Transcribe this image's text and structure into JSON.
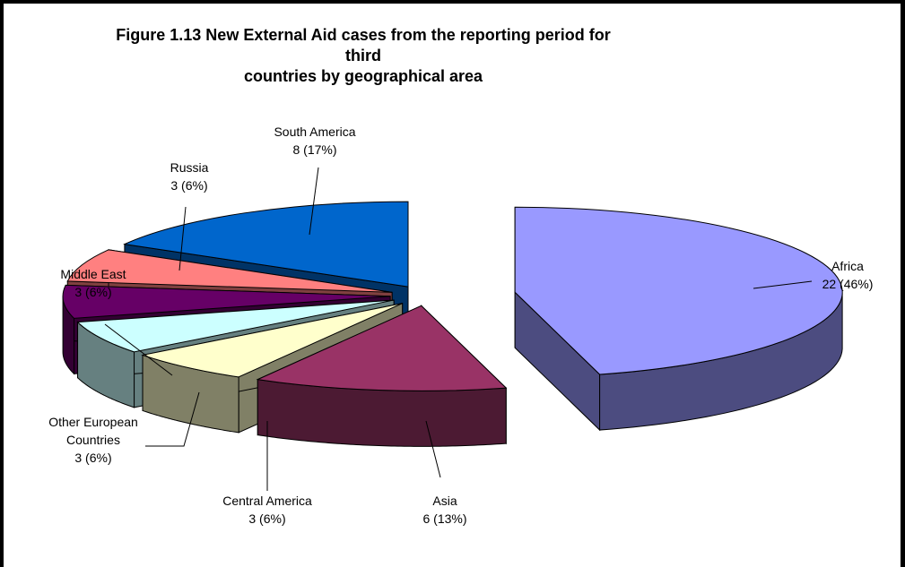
{
  "chart_data": {
    "type": "pie",
    "title_lines": [
      "Figure 1.13 New External Aid cases from the reporting period for third",
      "countries by geographical area"
    ],
    "slices": [
      {
        "name": "Africa",
        "value": 22,
        "label": "22 (46%)",
        "top_color": "#9999FF",
        "side_color": "#4C4C80",
        "exploded": true
      },
      {
        "name": "Asia",
        "value": 6,
        "label": "6 (13%)",
        "top_color": "#993366",
        "side_color": "#4C1A33",
        "exploded": true
      },
      {
        "name": "Central America",
        "value": 3,
        "label": "3 (6%)",
        "top_color": "#FFFFCC",
        "side_color": "#808066",
        "exploded": true
      },
      {
        "name": "Other European Countries",
        "value": 3,
        "label": "3 (6%)",
        "top_color": "#CCFFFF",
        "side_color": "#668080",
        "exploded": true
      },
      {
        "name": "Middle East",
        "value": 3,
        "label": "3 (6%)",
        "top_color": "#660066",
        "side_color": "#330033",
        "exploded": true
      },
      {
        "name": "Russia",
        "value": 3,
        "label": "3 (6%)",
        "top_color": "#FF8080",
        "side_color": "#804040",
        "exploded": true
      },
      {
        "name": "South America",
        "value": 8,
        "label": "8 (17%)",
        "top_color": "#0066CC",
        "side_color": "#003366",
        "exploded": true
      }
    ],
    "label_lines": [
      [
        "Africa",
        "22 (46%)"
      ],
      [
        "Asia",
        "6 (13%)"
      ],
      [
        "Central America",
        "3 (6%)"
      ],
      [
        "Other European",
        "Countries",
        "3 (6%)"
      ],
      [
        "Middle East",
        "3 (6%)"
      ],
      [
        "Russia",
        "3 (6%)"
      ],
      [
        "South America",
        "8 (17%)"
      ]
    ],
    "style": "3d-exploded-pie",
    "legend": "none",
    "edge_color": "#000000"
  }
}
